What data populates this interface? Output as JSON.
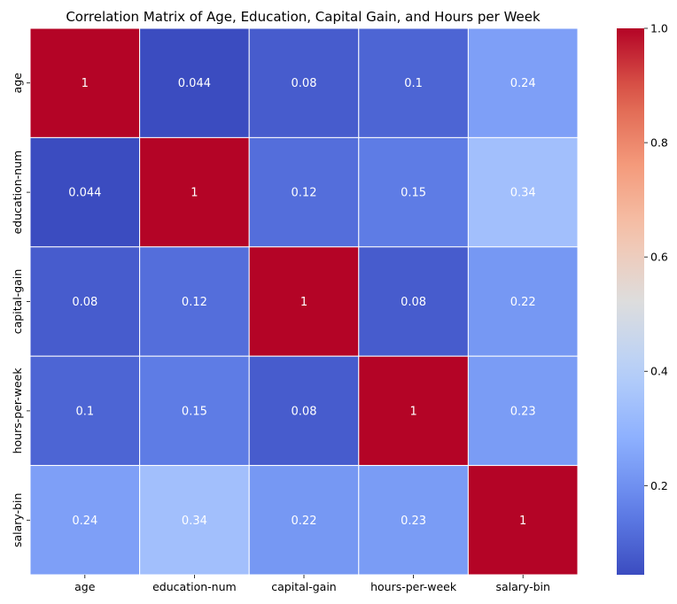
{
  "chart_data": {
    "type": "heatmap",
    "title": "Correlation Matrix of Age, Education, Capital Gain, and Hours per Week",
    "xlabel": "",
    "ylabel": "",
    "rows": [
      "age",
      "education-num",
      "capital-gain",
      "hours-per-week",
      "salary-bin"
    ],
    "columns": [
      "age",
      "education-num",
      "capital-gain",
      "hours-per-week",
      "salary-bin"
    ],
    "values": [
      [
        1,
        0.044,
        0.08,
        0.1,
        0.24
      ],
      [
        0.044,
        1,
        0.12,
        0.15,
        0.34
      ],
      [
        0.08,
        0.12,
        1,
        0.08,
        0.22
      ],
      [
        0.1,
        0.15,
        0.08,
        1,
        0.23
      ],
      [
        0.24,
        0.34,
        0.22,
        0.23,
        1
      ]
    ],
    "colormap": "coolwarm",
    "vmin": 0.044,
    "vmax": 1,
    "colorbar_ticks": [
      "0.2",
      "0.4",
      "0.6",
      "0.8",
      "1.0"
    ],
    "colorbar_tick_values": [
      0.2,
      0.4,
      0.6,
      0.8,
      1.0
    ],
    "annotated": true,
    "grid": false
  }
}
